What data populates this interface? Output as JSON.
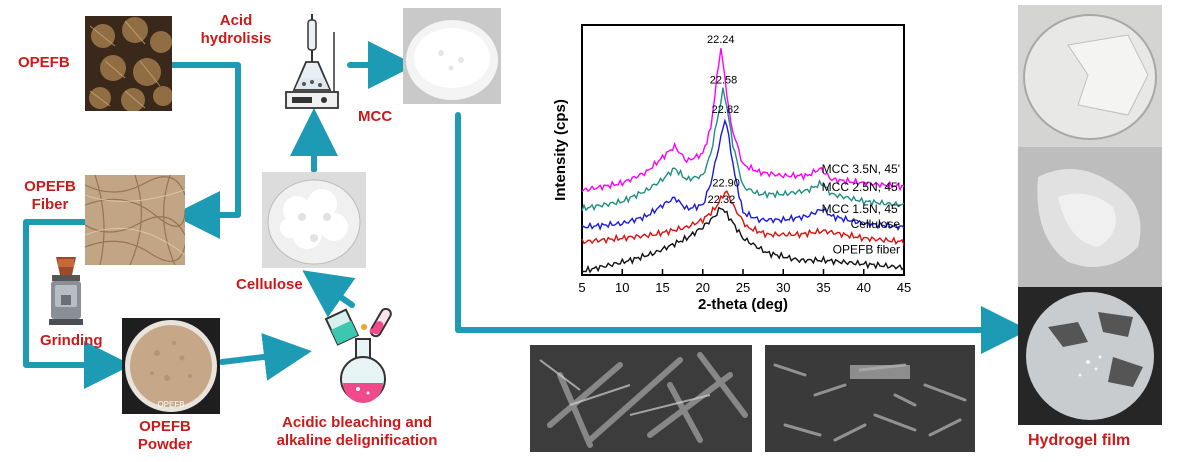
{
  "labels": {
    "opefb": "OPEFB",
    "acid_hydrolisis_1": "Acid",
    "acid_hydrolisis_2": "hydrolisis",
    "mcc": "MCC",
    "opefb_fiber_1": "OPEFB",
    "opefb_fiber_2": "Fiber",
    "cellulose": "Cellulose",
    "grinding": "Grinding",
    "opefb_powder_1": "OPEFB",
    "opefb_powder_2": "Powder",
    "bleaching_1": "Acidic bleaching and",
    "bleaching_2": "alkaline delignification",
    "hydrogel_film": "Hydrogel film",
    "dish_caption": "OPEFB"
  },
  "colors": {
    "label_red": "#cc1a1a",
    "arrow_teal": "#1e9bb4"
  },
  "chart_data": {
    "type": "line",
    "xlabel": "2-theta (deg)",
    "ylabel": "Intensity (cps)",
    "xlim": [
      5,
      45
    ],
    "xticks": [
      "5",
      "10",
      "15",
      "20",
      "25",
      "30",
      "35",
      "40",
      "45"
    ],
    "series": [
      {
        "name": "MCC 3.5N, 45'",
        "color": "#ff00ff",
        "peak": "22.24",
        "x": [
          5,
          10,
          13,
          15,
          16.5,
          18,
          20,
          21,
          22.24,
          23.5,
          25,
          27,
          30,
          33,
          34.6,
          36,
          40,
          45
        ],
        "y": [
          2.3,
          2.5,
          2.8,
          3.2,
          3.5,
          3.1,
          3.3,
          4.0,
          6.2,
          4.1,
          3.0,
          2.8,
          2.7,
          2.7,
          2.9,
          2.6,
          2.5,
          2.4
        ]
      },
      {
        "name": "MCC 2.5N, 45'",
        "color": "#1f8f80",
        "peak": "22.58",
        "x": [
          5,
          10,
          13,
          15,
          16.5,
          18,
          20,
          21,
          22.58,
          23.8,
          25,
          27,
          30,
          33,
          34.8,
          36,
          40,
          45
        ],
        "y": [
          1.8,
          2.0,
          2.3,
          2.6,
          2.9,
          2.6,
          2.7,
          3.3,
          5.1,
          3.5,
          2.4,
          2.2,
          2.2,
          2.3,
          2.5,
          2.2,
          2.0,
          1.9
        ]
      },
      {
        "name": "MCC 1.5N, 45'",
        "color": "#1a1adf",
        "peak": "22.82",
        "x": [
          5,
          10,
          13,
          15,
          16.5,
          18,
          20,
          21,
          22.82,
          24,
          25,
          27,
          30,
          33,
          34.9,
          36,
          40,
          45
        ],
        "y": [
          1.3,
          1.4,
          1.6,
          1.9,
          2.1,
          1.8,
          1.9,
          2.5,
          4.3,
          2.7,
          1.7,
          1.5,
          1.5,
          1.6,
          1.8,
          1.6,
          1.4,
          1.3
        ]
      },
      {
        "name": "Cellulose",
        "color": "#e01010",
        "peak": "22.90",
        "x": [
          5,
          10,
          14,
          16,
          18,
          20,
          21.5,
          22.9,
          24,
          25.5,
          28,
          32,
          35,
          40,
          45
        ],
        "y": [
          0.9,
          1.0,
          1.1,
          1.2,
          1.3,
          1.5,
          1.8,
          2.3,
          1.8,
          1.3,
          1.1,
          1.1,
          1.2,
          1.0,
          0.9
        ]
      },
      {
        "name": "OPEFB fiber",
        "color": "#111111",
        "peak": "22.32",
        "x": [
          5,
          8,
          11,
          14,
          16,
          18,
          20,
          21.5,
          22.32,
          23.5,
          25,
          28,
          32,
          35,
          40,
          45
        ],
        "y": [
          0.1,
          0.25,
          0.4,
          0.6,
          0.8,
          1.0,
          1.3,
          1.6,
          1.85,
          1.5,
          1.0,
          0.6,
          0.4,
          0.4,
          0.3,
          0.2
        ]
      }
    ]
  }
}
